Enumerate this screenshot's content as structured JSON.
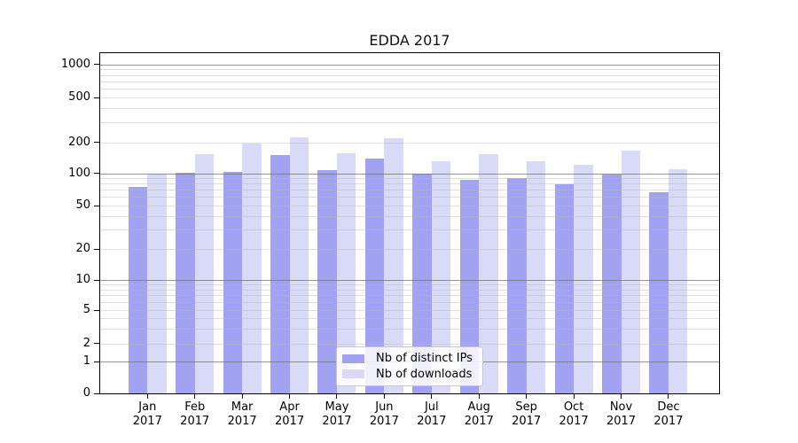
{
  "chart_data": {
    "type": "bar",
    "title": "EDDA 2017",
    "months": [
      "Jan",
      "Feb",
      "Mar",
      "Apr",
      "May",
      "Jun",
      "Jul",
      "Aug",
      "Sep",
      "Oct",
      "Nov",
      "Dec"
    ],
    "year_label": "2017",
    "series": [
      {
        "name": "Nb of distinct IPs",
        "color": "#a2a2f2",
        "values": [
          74,
          102,
          103,
          149,
          108,
          138,
          100,
          87,
          90,
          79,
          98,
          66
        ]
      },
      {
        "name": "Nb of downloads",
        "color": "#d9d9f8",
        "values": [
          100,
          152,
          196,
          222,
          155,
          217,
          130,
          152,
          132,
          121,
          166,
          109
        ]
      }
    ],
    "yticks": [
      0,
      1,
      2,
      5,
      10,
      20,
      50,
      100,
      200,
      500,
      1000
    ],
    "yaxis_scale": "log-with-zero",
    "grid": "major-and-minor-horizontal",
    "legend_position": "lower-center"
  }
}
